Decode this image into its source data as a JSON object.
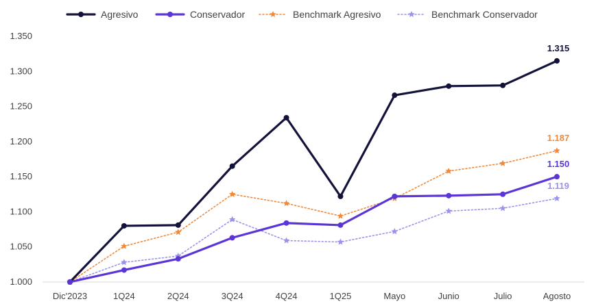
{
  "chart_data": {
    "type": "line",
    "title": "",
    "xlabel": "",
    "ylabel": "",
    "ylim": [
      1.0,
      1.35
    ],
    "yticks": [
      "1.000",
      "1.050",
      "1.100",
      "1.150",
      "1.200",
      "1.250",
      "1.300",
      "1.350"
    ],
    "categories": [
      "Dic'2023",
      "1Q24",
      "2Q24",
      "3Q24",
      "4Q24",
      "1Q25",
      "Mayo",
      "Junio",
      "Julio",
      "Agosto"
    ],
    "grid": false,
    "legend_position": "top",
    "series": [
      {
        "name": "Agresivo",
        "color": "#12123a",
        "style": "solid",
        "marker": "circle",
        "values": [
          1.0,
          1.08,
          1.081,
          1.165,
          1.234,
          1.122,
          1.266,
          1.279,
          1.28,
          1.315
        ],
        "end_label": "1.315"
      },
      {
        "name": "Conservador",
        "color": "#5b35d5",
        "style": "solid",
        "marker": "circle",
        "values": [
          1.0,
          1.017,
          1.033,
          1.063,
          1.084,
          1.081,
          1.122,
          1.123,
          1.125,
          1.15
        ],
        "end_label": "1.150"
      },
      {
        "name": "Benchmark Agresivo",
        "color": "#ef8a3c",
        "style": "dotted",
        "marker": "star",
        "values": [
          1.0,
          1.051,
          1.071,
          1.125,
          1.112,
          1.094,
          1.119,
          1.158,
          1.169,
          1.187
        ],
        "end_label": "1.187"
      },
      {
        "name": "Benchmark Conservador",
        "color": "#9a93ea",
        "style": "dotted",
        "marker": "star",
        "values": [
          1.0,
          1.028,
          1.037,
          1.089,
          1.059,
          1.057,
          1.072,
          1.101,
          1.105,
          1.119
        ],
        "end_label": "1.119"
      }
    ]
  }
}
